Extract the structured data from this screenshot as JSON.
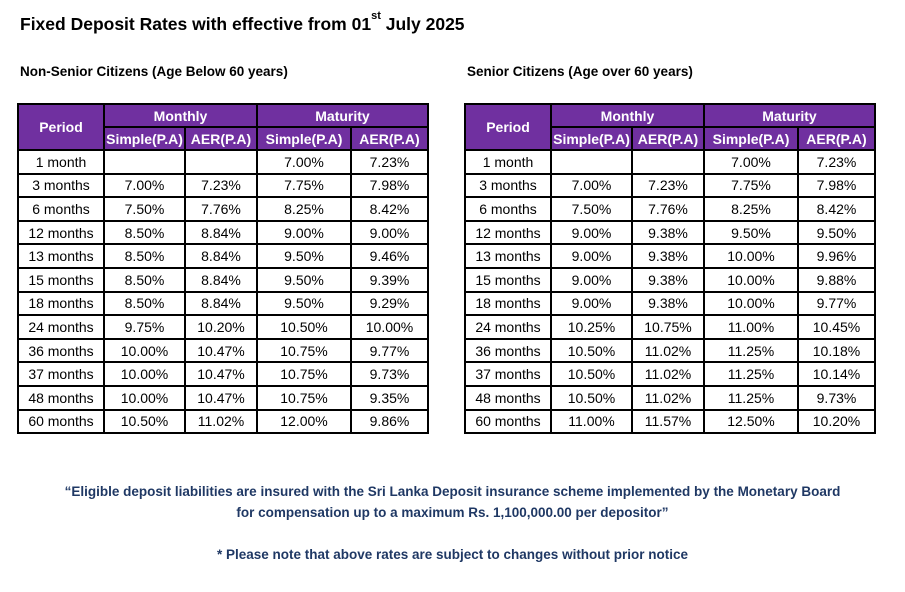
{
  "title": {
    "prefix": "Fixed Deposit Rates with effective from 01",
    "superscript": "st",
    "suffix": " July 2025"
  },
  "headers": {
    "period": "Period",
    "monthly": "Monthly",
    "maturity": "Maturity",
    "simple": "Simple(P.A)",
    "aer": "AER(P.A)"
  },
  "tables": [
    {
      "label": "Non-Senior Citizens (Age Below 60 years)",
      "rows": [
        {
          "period": "1 month",
          "monthly_simple": "",
          "monthly_aer": "",
          "maturity_simple": "7.00%",
          "maturity_aer": "7.23%"
        },
        {
          "period": "3 months",
          "monthly_simple": "7.00%",
          "monthly_aer": "7.23%",
          "maturity_simple": "7.75%",
          "maturity_aer": "7.98%"
        },
        {
          "period": "6 months",
          "monthly_simple": "7.50%",
          "monthly_aer": "7.76%",
          "maturity_simple": "8.25%",
          "maturity_aer": "8.42%"
        },
        {
          "period": "12 months",
          "monthly_simple": "8.50%",
          "monthly_aer": "8.84%",
          "maturity_simple": "9.00%",
          "maturity_aer": "9.00%"
        },
        {
          "period": "13 months",
          "monthly_simple": "8.50%",
          "monthly_aer": "8.84%",
          "maturity_simple": "9.50%",
          "maturity_aer": "9.46%"
        },
        {
          "period": "15 months",
          "monthly_simple": "8.50%",
          "monthly_aer": "8.84%",
          "maturity_simple": "9.50%",
          "maturity_aer": "9.39%"
        },
        {
          "period": "18 months",
          "monthly_simple": "8.50%",
          "monthly_aer": "8.84%",
          "maturity_simple": "9.50%",
          "maturity_aer": "9.29%"
        },
        {
          "period": "24 months",
          "monthly_simple": "9.75%",
          "monthly_aer": "10.20%",
          "maturity_simple": "10.50%",
          "maturity_aer": "10.00%"
        },
        {
          "period": "36 months",
          "monthly_simple": "10.00%",
          "monthly_aer": "10.47%",
          "maturity_simple": "10.75%",
          "maturity_aer": "9.77%"
        },
        {
          "period": "37 months",
          "monthly_simple": "10.00%",
          "monthly_aer": "10.47%",
          "maturity_simple": "10.75%",
          "maturity_aer": "9.73%"
        },
        {
          "period": "48 months",
          "monthly_simple": "10.00%",
          "monthly_aer": "10.47%",
          "maturity_simple": "10.75%",
          "maturity_aer": "9.35%"
        },
        {
          "period": "60 months",
          "monthly_simple": "10.50%",
          "monthly_aer": "11.02%",
          "maturity_simple": "12.00%",
          "maturity_aer": "9.86%"
        }
      ]
    },
    {
      "label": "Senior Citizens (Age over 60 years)",
      "rows": [
        {
          "period": "1 month",
          "monthly_simple": "",
          "monthly_aer": "",
          "maturity_simple": "7.00%",
          "maturity_aer": "7.23%"
        },
        {
          "period": "3 months",
          "monthly_simple": "7.00%",
          "monthly_aer": "7.23%",
          "maturity_simple": "7.75%",
          "maturity_aer": "7.98%"
        },
        {
          "period": "6 months",
          "monthly_simple": "7.50%",
          "monthly_aer": "7.76%",
          "maturity_simple": "8.25%",
          "maturity_aer": "8.42%"
        },
        {
          "period": "12 months",
          "monthly_simple": "9.00%",
          "monthly_aer": "9.38%",
          "maturity_simple": "9.50%",
          "maturity_aer": "9.50%"
        },
        {
          "period": "13 months",
          "monthly_simple": "9.00%",
          "monthly_aer": "9.38%",
          "maturity_simple": "10.00%",
          "maturity_aer": "9.96%"
        },
        {
          "period": "15 months",
          "monthly_simple": "9.00%",
          "monthly_aer": "9.38%",
          "maturity_simple": "10.00%",
          "maturity_aer": "9.88%"
        },
        {
          "period": "18 months",
          "monthly_simple": "9.00%",
          "monthly_aer": "9.38%",
          "maturity_simple": "10.00%",
          "maturity_aer": "9.77%"
        },
        {
          "period": "24 months",
          "monthly_simple": "10.25%",
          "monthly_aer": "10.75%",
          "maturity_simple": "11.00%",
          "maturity_aer": "10.45%"
        },
        {
          "period": "36 months",
          "monthly_simple": "10.50%",
          "monthly_aer": "11.02%",
          "maturity_simple": "11.25%",
          "maturity_aer": "10.18%"
        },
        {
          "period": "37 months",
          "monthly_simple": "10.50%",
          "monthly_aer": "11.02%",
          "maturity_simple": "11.25%",
          "maturity_aer": "10.14%"
        },
        {
          "period": "48 months",
          "monthly_simple": "10.50%",
          "monthly_aer": "11.02%",
          "maturity_simple": "11.25%",
          "maturity_aer": "9.73%"
        },
        {
          "period": "60 months",
          "monthly_simple": "11.00%",
          "monthly_aer": "11.57%",
          "maturity_simple": "12.50%",
          "maturity_aer": "10.20%"
        }
      ]
    }
  ],
  "notes": {
    "insurance_line1": "“Eligible deposit liabilities are insured with the Sri Lanka Deposit insurance scheme implemented by the Monetary Board",
    "insurance_line2": "for compensation up to a maximum Rs. 1,100,000.00 per depositor”",
    "changes": "* Please note that above rates are subject to changes without prior notice"
  },
  "colors": {
    "header_bg": "#7030a0",
    "note_text": "#1f3864"
  }
}
